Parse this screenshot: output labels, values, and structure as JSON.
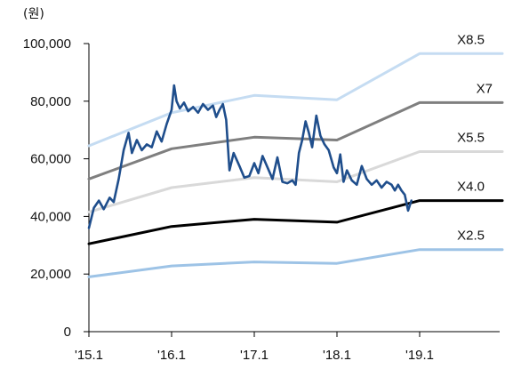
{
  "chart_data": {
    "type": "line",
    "unit_label": "(원)",
    "x_ticks": [
      "'15.1",
      "'16.1",
      "'17.1",
      "'18.1",
      "'19.1"
    ],
    "x_range": [
      2015.0,
      2020.0
    ],
    "ylim": [
      0,
      100000
    ],
    "y_ticks": [
      0,
      20000,
      40000,
      60000,
      80000,
      100000
    ],
    "y_tick_labels": [
      "0",
      "20,000",
      "40,000",
      "60,000",
      "80,000",
      "100,000"
    ],
    "grid": false,
    "legend": "none",
    "series": [
      {
        "name": "X8.5",
        "color": "#c5dcf2",
        "x": [
          2015.0,
          2016.0,
          2017.0,
          2018.0,
          2019.0,
          2020.0
        ],
        "y": [
          64500,
          76000,
          82000,
          80500,
          96500,
          96500
        ]
      },
      {
        "name": "X7",
        "color": "#7f7f7f",
        "x": [
          2015.0,
          2016.0,
          2017.0,
          2018.0,
          2019.0,
          2020.0
        ],
        "y": [
          53000,
          63500,
          67500,
          66500,
          79500,
          79500
        ]
      },
      {
        "name": "X5.5",
        "color": "#d9d9d9",
        "x": [
          2015.0,
          2016.0,
          2017.0,
          2018.0,
          2019.0,
          2020.0
        ],
        "y": [
          41500,
          50000,
          53500,
          52000,
          62500,
          62500
        ]
      },
      {
        "name": "X4.0",
        "color": "#000000",
        "x": [
          2015.0,
          2016.0,
          2017.0,
          2018.0,
          2019.0,
          2020.0
        ],
        "y": [
          30500,
          36500,
          39000,
          38000,
          45500,
          45500
        ]
      },
      {
        "name": "X2.5",
        "color": "#9dc3e6",
        "x": [
          2015.0,
          2016.0,
          2017.0,
          2018.0,
          2019.0,
          2020.0
        ],
        "y": [
          19000,
          22800,
          24200,
          23700,
          28500,
          28500
        ]
      },
      {
        "name": "",
        "color": "#1f4e8c",
        "x": [
          2015.0,
          2015.06,
          2015.12,
          2015.18,
          2015.25,
          2015.3,
          2015.36,
          2015.42,
          2015.48,
          2015.52,
          2015.58,
          2015.64,
          2015.7,
          2015.76,
          2015.82,
          2015.88,
          2015.94,
          2016.0,
          2016.03,
          2016.06,
          2016.1,
          2016.15,
          2016.2,
          2016.26,
          2016.32,
          2016.38,
          2016.44,
          2016.5,
          2016.54,
          2016.58,
          2016.62,
          2016.66,
          2016.7,
          2016.75,
          2016.82,
          2016.88,
          2016.94,
          2017.0,
          2017.05,
          2017.1,
          2017.16,
          2017.22,
          2017.28,
          2017.34,
          2017.4,
          2017.46,
          2017.5,
          2017.54,
          2017.58,
          2017.62,
          2017.66,
          2017.7,
          2017.75,
          2017.8,
          2017.85,
          2017.9,
          2017.96,
          2018.0,
          2018.04,
          2018.08,
          2018.12,
          2018.18,
          2018.24,
          2018.3,
          2018.36,
          2018.42,
          2018.48,
          2018.54,
          2018.6,
          2018.66,
          2018.7,
          2018.74,
          2018.78,
          2018.82,
          2018.86,
          2018.9
        ],
        "y": [
          36000,
          43000,
          45500,
          42500,
          46500,
          45000,
          53000,
          63000,
          69000,
          62000,
          66500,
          63000,
          65000,
          64000,
          69500,
          66000,
          72000,
          77000,
          85500,
          80000,
          77500,
          79500,
          76500,
          78000,
          76000,
          79000,
          77000,
          78500,
          74500,
          77000,
          79000,
          73500,
          56000,
          62000,
          57500,
          53500,
          54000,
          58500,
          55000,
          61000,
          57000,
          53000,
          60500,
          52000,
          51500,
          52500,
          51000,
          62000,
          66500,
          73000,
          69000,
          64000,
          75000,
          68000,
          65000,
          63000,
          57000,
          55000,
          61500,
          52000,
          56000,
          52500,
          51000,
          57500,
          53000,
          51000,
          52500,
          50000,
          52000,
          51000,
          49000,
          51000,
          49000,
          47500,
          42000,
          45500
        ]
      }
    ]
  }
}
